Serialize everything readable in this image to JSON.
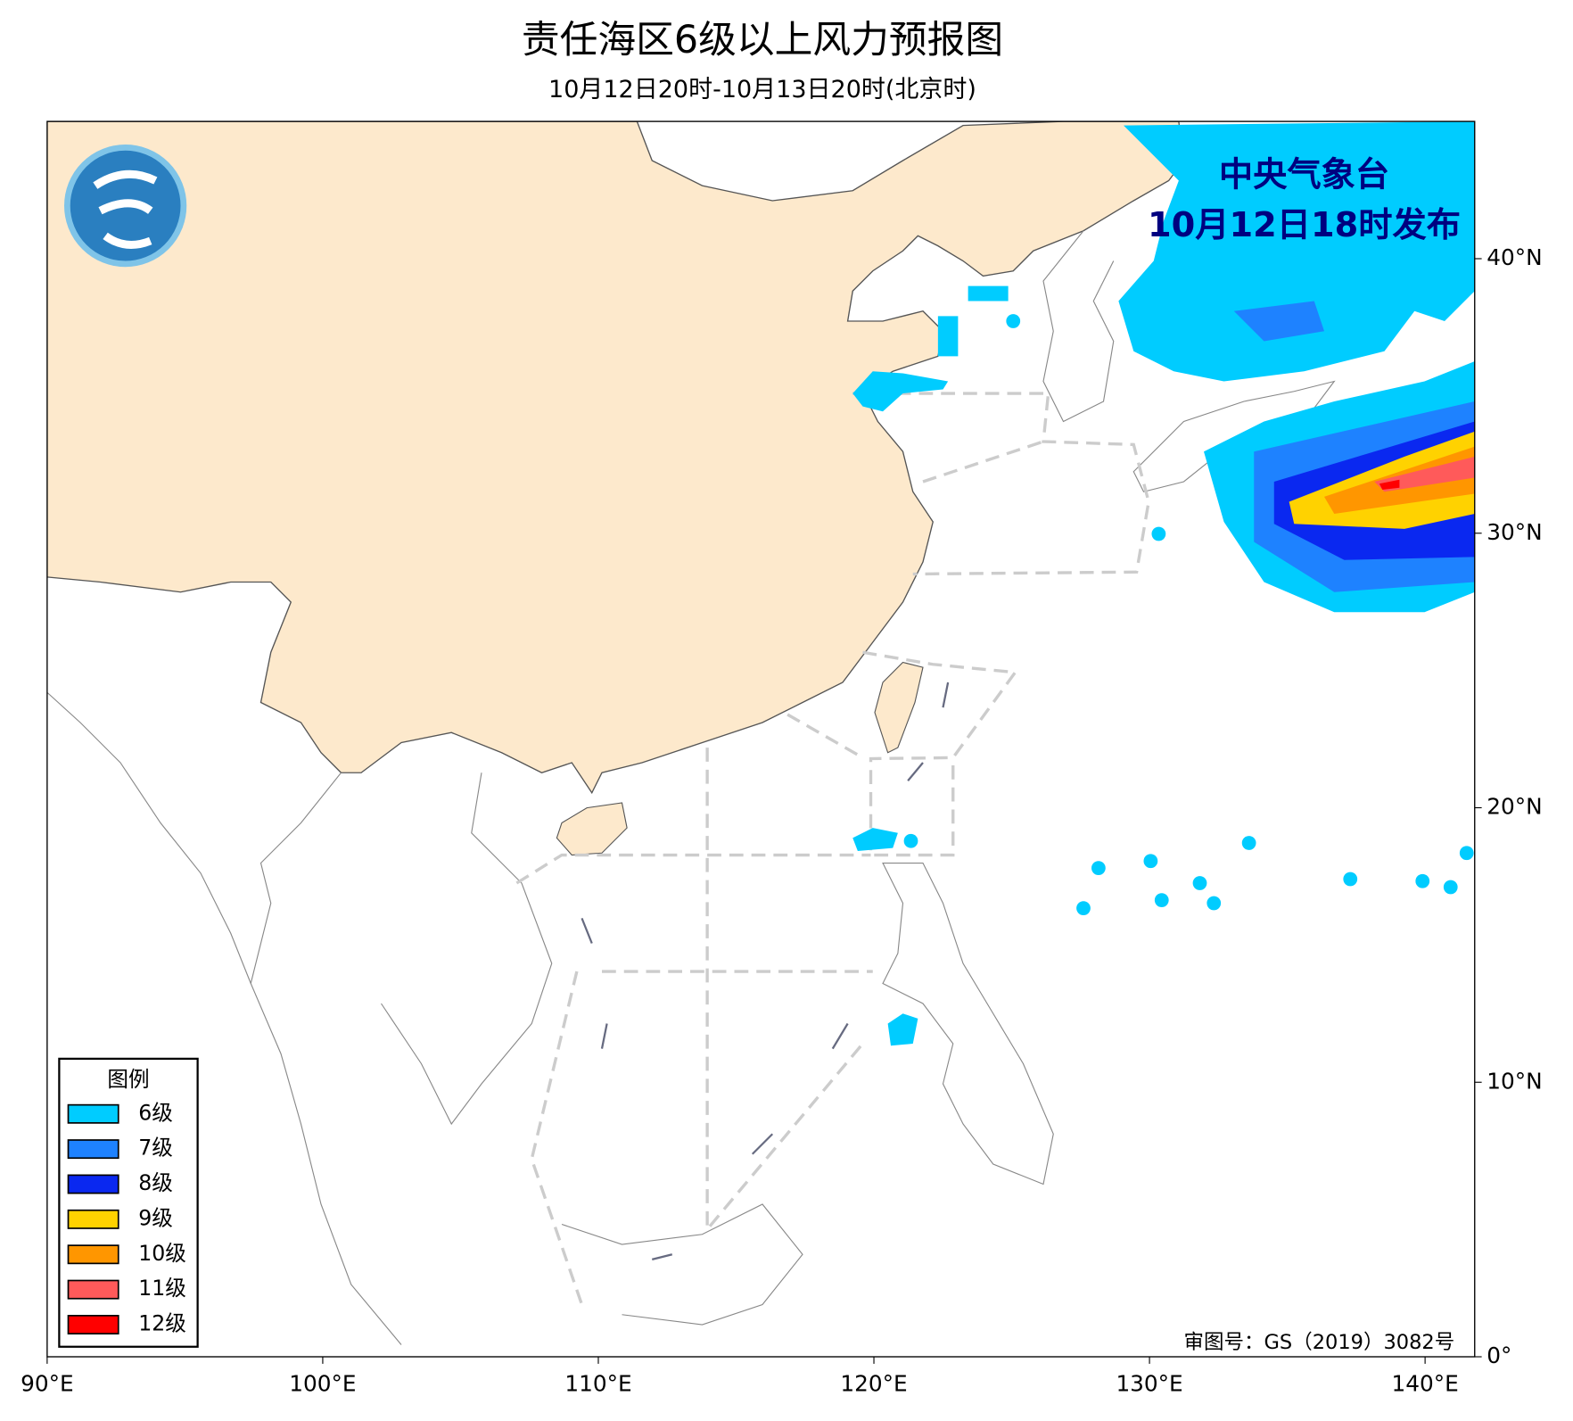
{
  "title": "责任海区6级以上风力预报图",
  "subtitle": "10月12日20时-10月13日20时(北京时)",
  "publisher": {
    "name": "中央气象台",
    "issued": "10月12日18时发布"
  },
  "legend": {
    "title": "图例",
    "items": [
      {
        "label": "6级",
        "color": "#00ccff"
      },
      {
        "label": "7级",
        "color": "#1e82ff"
      },
      {
        "label": "8级",
        "color": "#0a28f0"
      },
      {
        "label": "9级",
        "color": "#ffd200"
      },
      {
        "label": "10级",
        "color": "#ff9600"
      },
      {
        "label": "11级",
        "color": "#ff5a5a"
      },
      {
        "label": "12级",
        "color": "#ff0000"
      }
    ]
  },
  "axes": {
    "xlim": [
      90,
      141.8
    ],
    "ylim": [
      0,
      45
    ],
    "xticks": [
      {
        "value": 90,
        "label": "90°E"
      },
      {
        "value": 100,
        "label": "100°E"
      },
      {
        "value": 110,
        "label": "110°E"
      },
      {
        "value": 120,
        "label": "120°E"
      },
      {
        "value": 130,
        "label": "130°E"
      },
      {
        "value": 140,
        "label": "140°E"
      }
    ],
    "yticks": [
      {
        "value": 0,
        "label": "0°"
      },
      {
        "value": 10,
        "label": "10°N"
      },
      {
        "value": 20,
        "label": "20°N"
      },
      {
        "value": 30,
        "label": "30°N"
      },
      {
        "value": 40,
        "label": "40°N"
      }
    ]
  },
  "review_number": "审图号：GS（2019）3082号"
}
